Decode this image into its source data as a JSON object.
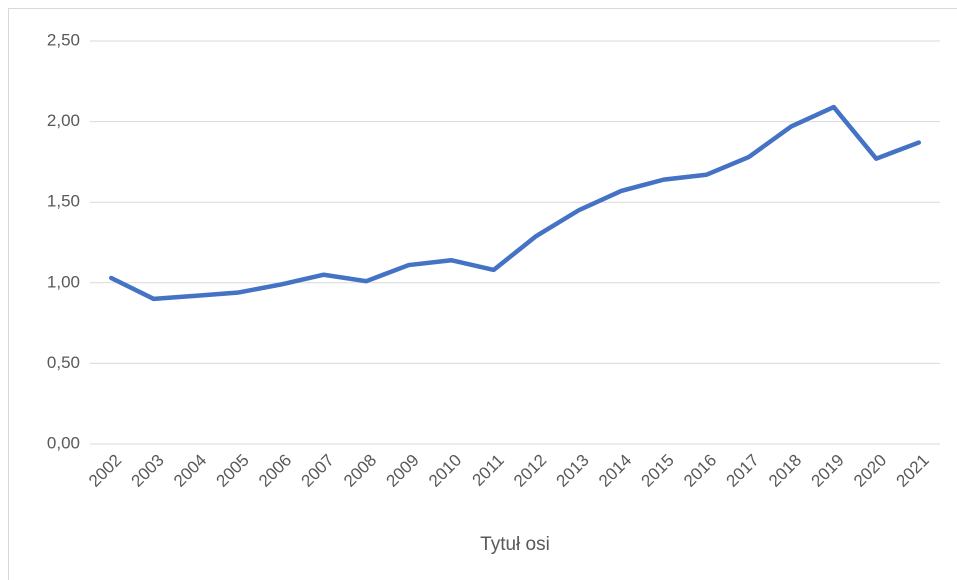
{
  "chart_data": {
    "type": "line",
    "x_label": "Tytuł osi",
    "categories": [
      "2002",
      "2003",
      "2004",
      "2005",
      "2006",
      "2007",
      "2008",
      "2009",
      "2010",
      "2011",
      "2012",
      "2013",
      "2014",
      "2015",
      "2016",
      "2017",
      "2018",
      "2019",
      "2020",
      "2021"
    ],
    "series": [
      {
        "color": "#4472c4",
        "values": [
          1.03,
          0.9,
          0.92,
          0.94,
          0.99,
          1.05,
          1.01,
          1.11,
          1.14,
          1.08,
          1.29,
          1.45,
          1.57,
          1.64,
          1.67,
          1.78,
          1.97,
          2.09,
          1.77,
          1.87
        ]
      }
    ],
    "ylim": [
      0,
      2.5
    ],
    "yticks": [
      {
        "value": 0,
        "label": "0,00"
      },
      {
        "value": 0.5,
        "label": "0,50"
      },
      {
        "value": 1,
        "label": "1,00"
      },
      {
        "value": 1.5,
        "label": "1,50"
      },
      {
        "value": 2,
        "label": "2,00"
      },
      {
        "value": 2.5,
        "label": "2,50"
      }
    ],
    "grid": true
  }
}
